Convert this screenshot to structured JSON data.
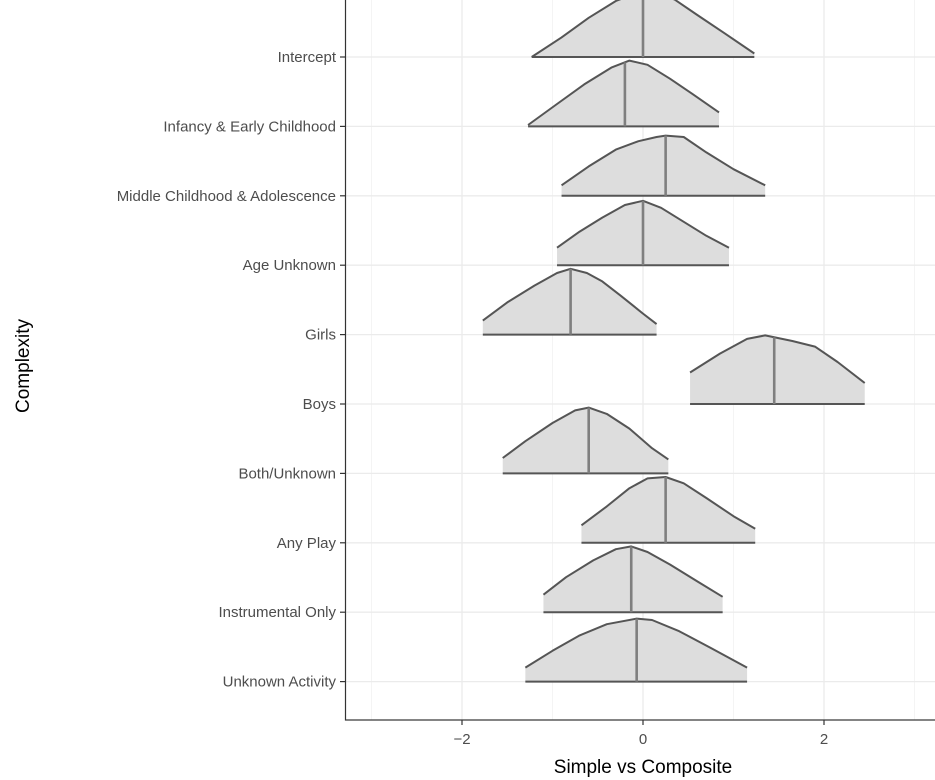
{
  "chart_data": {
    "type": "ridgeline",
    "xlabel": "Simple vs Composite",
    "ylabel": "Complexity",
    "xlim": [
      -3.3,
      3.3
    ],
    "x_ticks": [
      -2,
      0,
      2
    ],
    "x_tick_labels": [
      "−2",
      "0",
      "2"
    ],
    "grid": true,
    "fill_color": "#dddddd",
    "line_color": "#555555",
    "median_color": "#7f7f7f",
    "categories": [
      "Intercept",
      "Infancy & Early Childhood",
      "Middle Childhood & Adolescence",
      "Age Unknown",
      "Girls",
      "Boys",
      "Both/Unknown",
      "Any Play",
      "Instrumental Only",
      "Unknown Activity"
    ],
    "series": [
      {
        "name": "Intercept",
        "min": -1.23,
        "max": 1.23,
        "median": 0.0,
        "density": [
          [
            -1.23,
            0.0
          ],
          [
            -0.9,
            0.28
          ],
          [
            -0.6,
            0.56
          ],
          [
            -0.3,
            0.8
          ],
          [
            0.0,
            0.95
          ],
          [
            0.1,
            0.95
          ],
          [
            0.35,
            0.82
          ],
          [
            0.6,
            0.6
          ],
          [
            0.9,
            0.34
          ],
          [
            1.23,
            0.05
          ]
        ]
      },
      {
        "name": "Infancy & Early Childhood",
        "min": -1.27,
        "max": 0.84,
        "median": -0.2,
        "density": [
          [
            -1.27,
            0.02
          ],
          [
            -0.95,
            0.32
          ],
          [
            -0.65,
            0.6
          ],
          [
            -0.35,
            0.84
          ],
          [
            -0.15,
            0.94
          ],
          [
            0.05,
            0.88
          ],
          [
            0.3,
            0.68
          ],
          [
            0.55,
            0.46
          ],
          [
            0.84,
            0.2
          ]
        ]
      },
      {
        "name": "Middle Childhood & Adolescence",
        "min": -0.9,
        "max": 1.35,
        "median": 0.25,
        "density": [
          [
            -0.9,
            0.15
          ],
          [
            -0.6,
            0.42
          ],
          [
            -0.3,
            0.66
          ],
          [
            -0.05,
            0.78
          ],
          [
            0.15,
            0.84
          ],
          [
            0.25,
            0.86
          ],
          [
            0.45,
            0.84
          ],
          [
            0.7,
            0.62
          ],
          [
            1.0,
            0.38
          ],
          [
            1.35,
            0.15
          ]
        ]
      },
      {
        "name": "Age Unknown",
        "min": -0.95,
        "max": 0.95,
        "median": 0.0,
        "density": [
          [
            -0.95,
            0.25
          ],
          [
            -0.7,
            0.48
          ],
          [
            -0.45,
            0.68
          ],
          [
            -0.2,
            0.86
          ],
          [
            0.0,
            0.92
          ],
          [
            0.2,
            0.82
          ],
          [
            0.45,
            0.62
          ],
          [
            0.7,
            0.42
          ],
          [
            0.95,
            0.25
          ]
        ]
      },
      {
        "name": "Girls",
        "min": -1.77,
        "max": 0.15,
        "median": -0.8,
        "density": [
          [
            -1.77,
            0.2
          ],
          [
            -1.5,
            0.46
          ],
          [
            -1.2,
            0.7
          ],
          [
            -0.95,
            0.88
          ],
          [
            -0.8,
            0.94
          ],
          [
            -0.62,
            0.88
          ],
          [
            -0.45,
            0.76
          ],
          [
            -0.25,
            0.56
          ],
          [
            0.0,
            0.3
          ],
          [
            0.15,
            0.15
          ]
        ]
      },
      {
        "name": "Boys",
        "min": 0.52,
        "max": 2.45,
        "median": 1.45,
        "density": [
          [
            0.52,
            0.45
          ],
          [
            0.85,
            0.72
          ],
          [
            1.15,
            0.93
          ],
          [
            1.35,
            0.98
          ],
          [
            1.65,
            0.9
          ],
          [
            1.9,
            0.82
          ],
          [
            2.15,
            0.6
          ],
          [
            2.45,
            0.3
          ]
        ]
      },
      {
        "name": "Both/Unknown",
        "min": -1.55,
        "max": 0.28,
        "median": -0.6,
        "density": [
          [
            -1.55,
            0.22
          ],
          [
            -1.3,
            0.46
          ],
          [
            -1.0,
            0.72
          ],
          [
            -0.75,
            0.9
          ],
          [
            -0.6,
            0.94
          ],
          [
            -0.4,
            0.85
          ],
          [
            -0.15,
            0.64
          ],
          [
            0.1,
            0.36
          ],
          [
            0.28,
            0.2
          ]
        ]
      },
      {
        "name": "Any Play",
        "min": -0.68,
        "max": 1.24,
        "median": 0.25,
        "density": [
          [
            -0.68,
            0.25
          ],
          [
            -0.4,
            0.52
          ],
          [
            -0.15,
            0.78
          ],
          [
            0.05,
            0.92
          ],
          [
            0.25,
            0.94
          ],
          [
            0.45,
            0.85
          ],
          [
            0.7,
            0.64
          ],
          [
            1.0,
            0.38
          ],
          [
            1.24,
            0.2
          ]
        ]
      },
      {
        "name": "Instrumental Only",
        "min": -1.1,
        "max": 0.88,
        "median": -0.13,
        "density": [
          [
            -1.1,
            0.25
          ],
          [
            -0.85,
            0.5
          ],
          [
            -0.55,
            0.74
          ],
          [
            -0.3,
            0.9
          ],
          [
            -0.13,
            0.94
          ],
          [
            0.05,
            0.86
          ],
          [
            0.3,
            0.68
          ],
          [
            0.6,
            0.44
          ],
          [
            0.88,
            0.22
          ]
        ]
      },
      {
        "name": "Unknown Activity",
        "min": -1.3,
        "max": 1.15,
        "median": -0.07,
        "density": [
          [
            -1.3,
            0.2
          ],
          [
            -1.0,
            0.44
          ],
          [
            -0.7,
            0.66
          ],
          [
            -0.4,
            0.82
          ],
          [
            -0.07,
            0.9
          ],
          [
            0.1,
            0.88
          ],
          [
            0.4,
            0.72
          ],
          [
            0.75,
            0.48
          ],
          [
            1.15,
            0.2
          ]
        ]
      }
    ]
  }
}
